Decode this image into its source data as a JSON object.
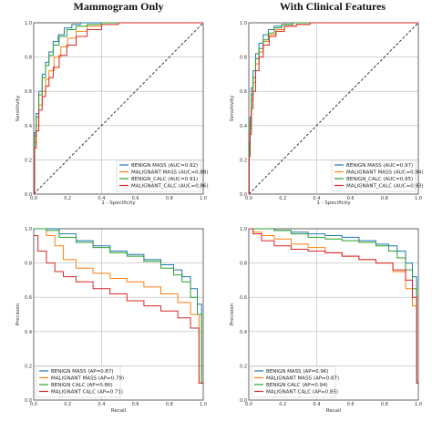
{
  "titles": {
    "left": "Mammogram Only",
    "right": "With Clinical Features"
  },
  "colors": {
    "benign_mass": "#1f77b4",
    "malignant_mass": "#ff7f0e",
    "benign_calc": "#2ca02c",
    "malignant_calc": "#d62728",
    "diagonal": "#222222"
  },
  "chart_data": [
    {
      "type": "line",
      "panel": "top-left",
      "title": "Mammogram Only",
      "xlabel": "1 - Specificity",
      "ylabel": "Sensitivity",
      "xlim": [
        0,
        1
      ],
      "ylim": [
        0,
        1
      ],
      "grid": "horizontal",
      "diagonal": true,
      "legend_position": "bottom-right",
      "xticks": [
        "0.0",
        "0.2",
        "0.4",
        "0.6",
        "0.8",
        "1.0"
      ],
      "yticks": [
        "0.0",
        "0.2",
        "0.4",
        "0.6",
        "0.8",
        "1.0"
      ],
      "series": [
        {
          "name": "BENIGN MASS (AUC=0.92)",
          "color": "#1f77b4",
          "x": [
            0,
            0.01,
            0.02,
            0.04,
            0.06,
            0.08,
            0.1,
            0.13,
            0.16,
            0.2,
            0.25,
            0.3,
            0.4,
            0.5,
            0.6,
            0.7,
            1
          ],
          "y": [
            0,
            0.36,
            0.47,
            0.6,
            0.7,
            0.77,
            0.83,
            0.89,
            0.93,
            0.97,
            0.99,
            1,
            1,
            1,
            1,
            1,
            1
          ]
        },
        {
          "name": "MALIGNANT MASS (AUC=0.88)",
          "color": "#ff7f0e",
          "x": [
            0,
            0.01,
            0.02,
            0.04,
            0.06,
            0.08,
            0.1,
            0.14,
            0.18,
            0.22,
            0.28,
            0.35,
            0.45,
            0.55,
            0.7,
            1
          ],
          "y": [
            0,
            0.3,
            0.4,
            0.52,
            0.6,
            0.67,
            0.72,
            0.8,
            0.86,
            0.91,
            0.95,
            0.98,
            1,
            1,
            1,
            1
          ]
        },
        {
          "name": "BENIGN_CALC (AUC=0.91)",
          "color": "#2ca02c",
          "x": [
            0,
            0.01,
            0.02,
            0.04,
            0.06,
            0.08,
            0.1,
            0.13,
            0.17,
            0.22,
            0.28,
            0.35,
            0.45,
            0.55,
            1
          ],
          "y": [
            0,
            0.34,
            0.45,
            0.58,
            0.68,
            0.75,
            0.81,
            0.87,
            0.92,
            0.96,
            0.98,
            0.99,
            1,
            1,
            1
          ]
        },
        {
          "name": "MALIGNANT_CALC (AUC=0.86)",
          "color": "#d62728",
          "x": [
            0,
            0.01,
            0.02,
            0.04,
            0.06,
            0.08,
            0.1,
            0.13,
            0.17,
            0.22,
            0.28,
            0.35,
            0.45,
            0.55,
            0.7,
            1
          ],
          "y": [
            0,
            0.27,
            0.37,
            0.49,
            0.57,
            0.63,
            0.68,
            0.74,
            0.81,
            0.87,
            0.92,
            0.96,
            0.99,
            1,
            1,
            1
          ]
        }
      ]
    },
    {
      "type": "line",
      "panel": "top-right",
      "title": "With Clinical Features",
      "xlabel": "1 - Specificity",
      "ylabel": "Sensitivity",
      "xlim": [
        0,
        1
      ],
      "ylim": [
        0,
        1
      ],
      "grid": "horizontal",
      "diagonal": true,
      "legend_position": "bottom-right",
      "xticks": [
        "0.0",
        "0.2",
        "0.4",
        "0.6",
        "0.8",
        "1.0"
      ],
      "yticks": [
        "0.0",
        "0.2",
        "0.4",
        "0.6",
        "0.8",
        "1.0"
      ],
      "series": [
        {
          "name": "BENIGN MASS (AUC=0.97)",
          "color": "#1f77b4",
          "x": [
            0,
            0.005,
            0.01,
            0.02,
            0.03,
            0.05,
            0.07,
            0.1,
            0.13,
            0.17,
            0.22,
            0.3,
            1
          ],
          "y": [
            0,
            0.3,
            0.45,
            0.62,
            0.72,
            0.82,
            0.88,
            0.93,
            0.96,
            0.98,
            0.99,
            1,
            1
          ]
        },
        {
          "name": "MALIGNANT MASS (AUC=0.94)",
          "color": "#ff7f0e",
          "x": [
            0,
            0.005,
            0.01,
            0.02,
            0.03,
            0.05,
            0.07,
            0.1,
            0.14,
            0.18,
            0.24,
            0.32,
            0.4,
            1
          ],
          "y": [
            0,
            0.24,
            0.38,
            0.55,
            0.65,
            0.76,
            0.83,
            0.89,
            0.93,
            0.96,
            0.98,
            0.99,
            1,
            1
          ]
        },
        {
          "name": "BENIGN_CALC (AUC=0.95)",
          "color": "#2ca02c",
          "x": [
            0,
            0.005,
            0.01,
            0.02,
            0.03,
            0.05,
            0.07,
            0.1,
            0.13,
            0.17,
            0.22,
            0.3,
            0.38,
            1
          ],
          "y": [
            0,
            0.28,
            0.42,
            0.58,
            0.68,
            0.79,
            0.85,
            0.9,
            0.94,
            0.97,
            0.99,
            1,
            1,
            1
          ]
        },
        {
          "name": "MALIGNANT_CALC (AUC=0.93)",
          "color": "#d62728",
          "x": [
            0,
            0.005,
            0.01,
            0.02,
            0.03,
            0.05,
            0.07,
            0.1,
            0.14,
            0.18,
            0.24,
            0.32,
            0.4,
            1
          ],
          "y": [
            0,
            0.22,
            0.35,
            0.5,
            0.6,
            0.72,
            0.8,
            0.87,
            0.92,
            0.95,
            0.98,
            0.99,
            1,
            1
          ]
        }
      ]
    },
    {
      "type": "line",
      "panel": "bottom-left",
      "xlabel": "Recall",
      "ylabel": "Precision",
      "xlim": [
        0,
        1
      ],
      "ylim": [
        0,
        1
      ],
      "grid": "horizontal",
      "diagonal": false,
      "legend_position": "bottom-left",
      "xticks": [
        "0.0",
        "0.2",
        "0.4",
        "0.6",
        "0.8",
        "1.0"
      ],
      "yticks": [
        "0.0",
        "0.2",
        "0.4",
        "0.6",
        "0.8",
        "1.0"
      ],
      "series": [
        {
          "name": "BENIGN MASS (AP=0.87)",
          "color": "#1f77b4",
          "x": [
            0,
            0.05,
            0.1,
            0.2,
            0.3,
            0.4,
            0.5,
            0.6,
            0.7,
            0.8,
            0.85,
            0.9,
            0.95,
            0.98,
            1
          ],
          "y": [
            1,
            1,
            1,
            0.97,
            0.93,
            0.9,
            0.87,
            0.85,
            0.82,
            0.79,
            0.76,
            0.72,
            0.65,
            0.56,
            0.1
          ]
        },
        {
          "name": "MALIGNANT MASS (AP=0.79)",
          "color": "#ff7f0e",
          "x": [
            0,
            0.05,
            0.1,
            0.15,
            0.2,
            0.3,
            0.4,
            0.5,
            0.6,
            0.7,
            0.8,
            0.9,
            0.95,
            1
          ],
          "y": [
            1,
            1,
            0.96,
            0.9,
            0.82,
            0.77,
            0.74,
            0.71,
            0.69,
            0.66,
            0.62,
            0.57,
            0.5,
            0.1
          ]
        },
        {
          "name": "BENIGN CALC (AP=0.86)",
          "color": "#2ca02c",
          "x": [
            0,
            0.05,
            0.1,
            0.2,
            0.3,
            0.4,
            0.5,
            0.6,
            0.7,
            0.8,
            0.85,
            0.9,
            0.95,
            0.98,
            1
          ],
          "y": [
            1,
            1,
            0.99,
            0.95,
            0.92,
            0.89,
            0.86,
            0.84,
            0.81,
            0.77,
            0.73,
            0.69,
            0.6,
            0.5,
            0.1
          ]
        },
        {
          "name": "MALIGNANT CALC (AP=0.71)",
          "color": "#d62728",
          "x": [
            0,
            0.05,
            0.1,
            0.15,
            0.2,
            0.3,
            0.4,
            0.5,
            0.6,
            0.7,
            0.8,
            0.9,
            0.95,
            1
          ],
          "y": [
            0.96,
            0.87,
            0.8,
            0.75,
            0.72,
            0.69,
            0.65,
            0.62,
            0.58,
            0.55,
            0.52,
            0.48,
            0.42,
            0.1
          ]
        }
      ]
    },
    {
      "type": "line",
      "panel": "bottom-right",
      "xlabel": "Recall",
      "ylabel": "Precision",
      "xlim": [
        0,
        1
      ],
      "ylim": [
        0,
        1
      ],
      "grid": "horizontal",
      "diagonal": false,
      "legend_position": "bottom-left",
      "xticks": [
        "0.0",
        "0.2",
        "0.4",
        "0.6",
        "0.8",
        "1.0"
      ],
      "yticks": [
        "0.0",
        "0.2",
        "0.4",
        "0.6",
        "0.8",
        "1.0"
      ],
      "series": [
        {
          "name": "BENIGN MASS (AP=0.96)",
          "color": "#1f77b4",
          "x": [
            0,
            0.1,
            0.2,
            0.3,
            0.4,
            0.5,
            0.6,
            0.7,
            0.8,
            0.85,
            0.9,
            0.95,
            0.98,
            1
          ],
          "y": [
            1,
            1,
            0.99,
            0.98,
            0.97,
            0.96,
            0.95,
            0.93,
            0.91,
            0.9,
            0.87,
            0.8,
            0.72,
            0.1
          ]
        },
        {
          "name": "MALIGNANT MASS (AP=0.87)",
          "color": "#ff7f0e",
          "x": [
            0,
            0.05,
            0.1,
            0.2,
            0.3,
            0.4,
            0.5,
            0.6,
            0.7,
            0.8,
            0.9,
            0.95,
            0.98,
            1
          ],
          "y": [
            1,
            0.98,
            0.96,
            0.94,
            0.91,
            0.89,
            0.86,
            0.84,
            0.82,
            0.8,
            0.75,
            0.65,
            0.55,
            0.1
          ]
        },
        {
          "name": "BENIGN CALC (AP=0.94)",
          "color": "#2ca02c",
          "x": [
            0,
            0.1,
            0.2,
            0.3,
            0.4,
            0.5,
            0.6,
            0.7,
            0.8,
            0.85,
            0.9,
            0.95,
            0.98,
            1
          ],
          "y": [
            1,
            1,
            0.99,
            0.97,
            0.95,
            0.94,
            0.93,
            0.92,
            0.9,
            0.87,
            0.83,
            0.76,
            0.65,
            0.1
          ]
        },
        {
          "name": "MALIGNANT CALC (AP=0.85)",
          "color": "#d62728",
          "x": [
            0,
            0.05,
            0.1,
            0.2,
            0.3,
            0.4,
            0.5,
            0.6,
            0.7,
            0.8,
            0.9,
            0.95,
            0.98,
            1
          ],
          "y": [
            1,
            0.97,
            0.93,
            0.9,
            0.88,
            0.87,
            0.86,
            0.84,
            0.82,
            0.8,
            0.76,
            0.7,
            0.6,
            0.1
          ]
        }
      ]
    }
  ]
}
